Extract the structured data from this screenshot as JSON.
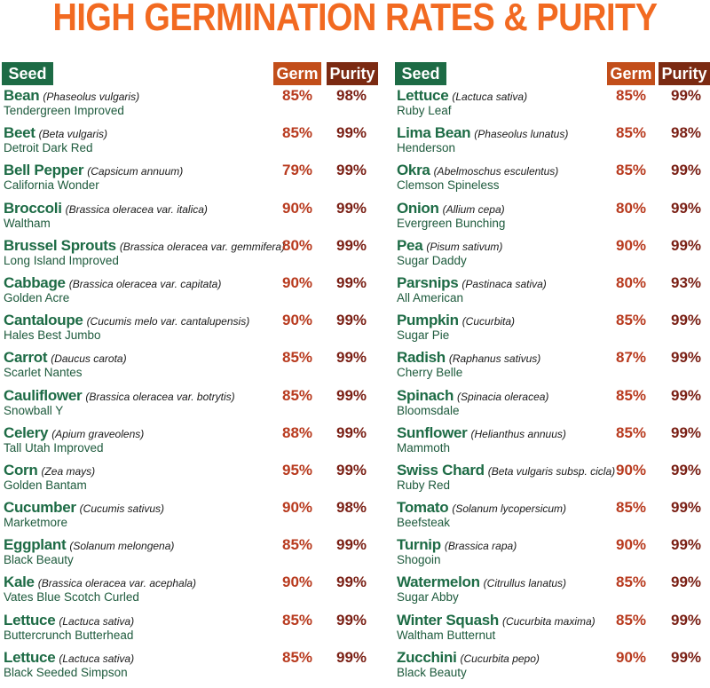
{
  "title": "HIGH GERMINATION RATES & PURITY",
  "headers": {
    "seed": "Seed",
    "germ": "Germ",
    "purity": "Purity"
  },
  "colors": {
    "title": "#f26a21",
    "green": "#1d6b45",
    "germ": "#c24e1a",
    "purity": "#7b2a12"
  },
  "left": [
    {
      "name": "Bean",
      "sci": "(Phaseolus vulgaris)",
      "variety": "Tendergreen Improved",
      "germ": "85%",
      "purity": "98%"
    },
    {
      "name": "Beet",
      "sci": "(Beta vulgaris)",
      "variety": "Detroit Dark Red",
      "germ": "85%",
      "purity": "99%"
    },
    {
      "name": "Bell Pepper",
      "sci": "(Capsicum annuum)",
      "variety": "California Wonder",
      "germ": "79%",
      "purity": "99%"
    },
    {
      "name": "Broccoli",
      "sci": "(Brassica oleracea var. italica)",
      "variety": "Waltham",
      "germ": "90%",
      "purity": "99%"
    },
    {
      "name": "Brussel Sprouts",
      "sci": "(Brassica oleracea var. gemmifera)",
      "variety": "Long Island Improved",
      "germ": "80%",
      "purity": "99%"
    },
    {
      "name": "Cabbage",
      "sci": "(Brassica oleracea var. capitata)",
      "variety": "Golden Acre",
      "germ": "90%",
      "purity": "99%"
    },
    {
      "name": "Cantaloupe",
      "sci": "(Cucumis melo var. cantalupensis)",
      "variety": "Hales Best Jumbo",
      "germ": "90%",
      "purity": "99%"
    },
    {
      "name": "Carrot",
      "sci": "(Daucus carota)",
      "variety": "Scarlet Nantes",
      "germ": "85%",
      "purity": "99%"
    },
    {
      "name": "Cauliflower",
      "sci": "(Brassica oleracea var. botrytis)",
      "variety": "Snowball Y",
      "germ": "85%",
      "purity": "99%"
    },
    {
      "name": "Celery",
      "sci": "(Apium graveolens)",
      "variety": "Tall Utah Improved",
      "germ": "88%",
      "purity": "99%"
    },
    {
      "name": "Corn",
      "sci": "(Zea mays)",
      "variety": "Golden Bantam",
      "germ": "95%",
      "purity": "99%"
    },
    {
      "name": "Cucumber",
      "sci": "(Cucumis sativus)",
      "variety": "Marketmore",
      "germ": "90%",
      "purity": "98%"
    },
    {
      "name": "Eggplant",
      "sci": "(Solanum melongena)",
      "variety": "Black Beauty",
      "germ": "85%",
      "purity": "99%"
    },
    {
      "name": "Kale",
      "sci": "(Brassica oleracea var. acephala)",
      "variety": "Vates Blue Scotch Curled",
      "germ": "90%",
      "purity": "99%"
    },
    {
      "name": "Lettuce",
      "sci": "(Lactuca sativa)",
      "variety": "Buttercrunch Butterhead",
      "germ": "85%",
      "purity": "99%"
    },
    {
      "name": "Lettuce",
      "sci": "(Lactuca sativa)",
      "variety": "Black Seeded Simpson",
      "germ": "85%",
      "purity": "99%"
    }
  ],
  "right": [
    {
      "name": "Lettuce",
      "sci": "(Lactuca sativa)",
      "variety": "Ruby Leaf",
      "germ": "85%",
      "purity": "99%"
    },
    {
      "name": "Lima Bean",
      "sci": "(Phaseolus lunatus)",
      "variety": "Henderson",
      "germ": "85%",
      "purity": "98%"
    },
    {
      "name": "Okra",
      "sci": "(Abelmoschus esculentus)",
      "variety": "Clemson Spineless",
      "germ": "85%",
      "purity": "99%"
    },
    {
      "name": "Onion",
      "sci": "(Allium cepa)",
      "variety": "Evergreen Bunching",
      "germ": "80%",
      "purity": "99%"
    },
    {
      "name": "Pea",
      "sci": "(Pisum sativum)",
      "variety": "Sugar Daddy",
      "germ": "90%",
      "purity": "99%"
    },
    {
      "name": "Parsnips",
      "sci": "(Pastinaca sativa)",
      "variety": "All American",
      "germ": "80%",
      "purity": "93%"
    },
    {
      "name": "Pumpkin",
      "sci": "(Cucurbita)",
      "variety": "Sugar Pie",
      "germ": "85%",
      "purity": "99%"
    },
    {
      "name": "Radish",
      "sci": "(Raphanus sativus)",
      "variety": "Cherry Belle",
      "germ": "87%",
      "purity": "99%"
    },
    {
      "name": "Spinach",
      "sci": "(Spinacia oleracea)",
      "variety": "Bloomsdale",
      "germ": "85%",
      "purity": "99%"
    },
    {
      "name": "Sunflower",
      "sci": "(Helianthus annuus)",
      "variety": "Mammoth",
      "germ": "85%",
      "purity": "99%"
    },
    {
      "name": "Swiss Chard",
      "sci": "(Beta vulgaris subsp. cicla)",
      "variety": "Ruby Red",
      "germ": "90%",
      "purity": "99%"
    },
    {
      "name": "Tomato",
      "sci": "(Solanum lycopersicum)",
      "variety": "Beefsteak",
      "germ": "85%",
      "purity": "99%"
    },
    {
      "name": "Turnip",
      "sci": "(Brassica rapa)",
      "variety": "Shogoin",
      "germ": "90%",
      "purity": "99%"
    },
    {
      "name": "Watermelon",
      "sci": "(Citrullus lanatus)",
      "variety": "Sugar Abby",
      "germ": "85%",
      "purity": "99%"
    },
    {
      "name": "Winter Squash",
      "sci": "(Cucurbita maxima)",
      "variety": "Waltham Butternut",
      "germ": "85%",
      "purity": "99%"
    },
    {
      "name": "Zucchini",
      "sci": "(Cucurbita pepo)",
      "variety": "Black Beauty",
      "germ": "90%",
      "purity": "99%"
    }
  ]
}
